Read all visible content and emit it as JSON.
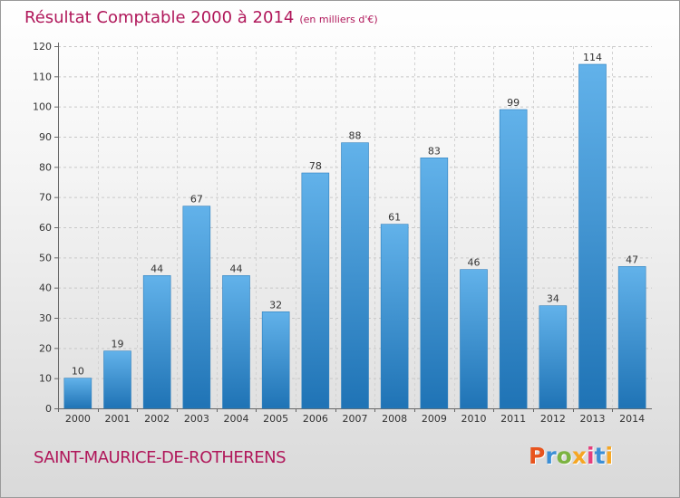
{
  "header": {
    "title": "Résultat Comptable 2000 à 2014",
    "subtitle": "(en milliers d'€)"
  },
  "footer": {
    "commune": "SAINT-MAURICE-DE-ROTHERENS",
    "logo_text": "Proxiti"
  },
  "colors": {
    "title": "#b0175a",
    "bar_top": "#62b2ea",
    "bar_bottom": "#1f73b5"
  },
  "chart_data": {
    "type": "bar",
    "title": "Résultat Comptable 2000 à 2014",
    "subtitle": "(en milliers d'€)",
    "xlabel": "",
    "ylabel": "",
    "ylim": [
      0,
      120
    ],
    "yticks": [
      0,
      10,
      20,
      30,
      40,
      50,
      60,
      70,
      80,
      90,
      100,
      110,
      120
    ],
    "grid": true,
    "categories": [
      "2000",
      "2001",
      "2002",
      "2003",
      "2004",
      "2005",
      "2006",
      "2007",
      "2008",
      "2009",
      "2010",
      "2011",
      "2012",
      "2013",
      "2014"
    ],
    "values": [
      10,
      19,
      44,
      67,
      44,
      32,
      78,
      88,
      61,
      83,
      46,
      99,
      34,
      114,
      47
    ]
  }
}
